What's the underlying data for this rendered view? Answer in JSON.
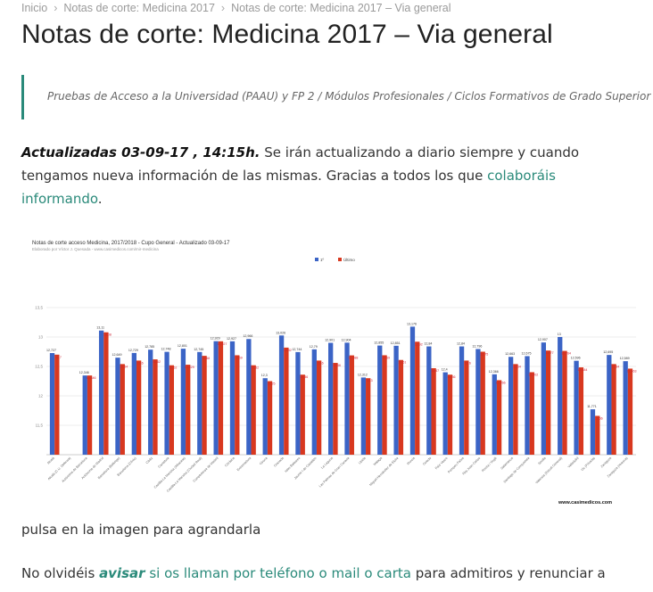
{
  "breadcrumb": {
    "items": [
      "Inicio",
      "Notas de corte: Medicina 2017",
      "Notas de corte: Medicina 2017 – Via general"
    ],
    "separator": "›"
  },
  "page": {
    "title": "Notas de corte: Medicina 2017 – Via general",
    "quote": "Pruebas de Acceso a la Universidad (PAAU) y FP 2 / Módulos Profesionales / Ciclos Formativos de Grado Superior"
  },
  "update_paragraph": {
    "bold": "Actualizadas 03-09-17 , 14:15h.",
    "text": " Se irán actualizando a diario siempre y cuando tengamos nueva información de las mismas. Gracias a todos los que ",
    "link": "colaboráis informando",
    "end": "."
  },
  "caption": "pulsa en la imagen para agrandarla",
  "closing": {
    "pre": "No olvidéis ",
    "link_bold": "avisar",
    "link": " si os llaman por teléfono o mail o carta",
    "post": " para admitiros y renunciar a"
  },
  "colors": {
    "accent": "#2a8a7a",
    "series_first": "#3b64c6",
    "series_last": "#d8381f"
  },
  "chart_data": {
    "type": "bar",
    "title": "Notas de corte acceso Medicina, 2017/2018 - Cupo General - Actualizado 03-09-17",
    "subtitle": "Elaborado por Víctor J. Quesada - www.casimedicos.com/mir-medicina",
    "watermark": "www.casimedicos.com",
    "legend_position": "top-center",
    "grid": true,
    "ylim": [
      11.0,
      14.0
    ],
    "yticks": [
      "11,5",
      "12",
      "12,5",
      "13",
      "13,5"
    ],
    "categories": [
      "Alcalá",
      "Alcalá (C.U. Defensa)",
      "Autónoma de Barcelona",
      "Autónoma de Madrid",
      "Barcelona (Bellvitge)",
      "Barcelona (Clínic)",
      "Cádiz",
      "Cantabria",
      "Castilla-La Mancha (Albacete)",
      "Castilla-La Mancha (Ciudad Real)",
      "Complutense de Madrid",
      "Córdoba",
      "Extremadura",
      "Girona",
      "Granada",
      "Islas Baleares",
      "Jaume I de Castellón",
      "La Laguna",
      "Las Palmas de Gran Canaria",
      "Lleida",
      "Málaga",
      "Miguel Hernández de Elche",
      "Murcia",
      "Oviedo",
      "País Vasco",
      "Pompeu Fabra",
      "Rey Juan Carlos",
      "Rovira i Virgili",
      "Salamanca",
      "Santiago de Compostela",
      "Sevilla",
      "Valencia (Estudi General)",
      "Valladolid",
      "Vic (Privada)",
      "Zaragoza",
      "Zaragoza (Huesca)"
    ],
    "series": [
      {
        "name": "1º",
        "values": [
          12.727,
          null,
          12.346,
          13.11,
          12.649,
          12.729,
          12.785,
          12.748,
          12.801,
          12.745,
          12.929,
          12.927,
          12.966,
          12.3,
          13.026,
          12.744,
          12.79,
          12.901,
          12.904,
          12.312,
          12.855,
          12.851,
          13.176,
          12.84,
          12.4,
          12.84,
          12.796,
          12.366,
          12.663,
          12.675,
          12.907,
          13.0,
          12.596,
          11.771,
          12.695,
          12.589
        ]
      },
      {
        "name": "Último",
        "values": [
          12.7,
          null,
          12.346,
          13.08,
          12.54,
          12.6,
          12.62,
          12.52,
          12.529,
          12.68,
          12.927,
          12.69,
          12.52,
          12.25,
          12.82,
          12.36,
          12.6,
          12.56,
          12.688,
          12.3,
          12.69,
          12.61,
          12.92,
          12.47,
          12.36,
          12.6,
          12.75,
          12.266,
          12.54,
          12.402,
          12.77,
          12.764,
          12.484,
          11.66,
          12.54,
          12.463
        ]
      }
    ]
  }
}
